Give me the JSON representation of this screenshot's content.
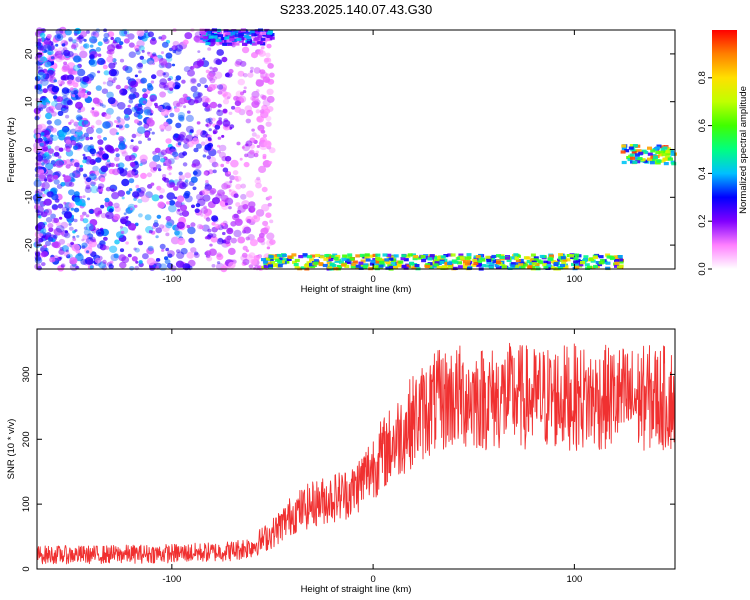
{
  "title": "S233.2025.140.07.43.G30",
  "colors": {
    "snr_line": "#f03030",
    "spectrogram_low": "#d9b3ff",
    "spectrogram_mid": "#5a12e6",
    "spectrogram_high": "#ff1a1a",
    "axes": "#000000"
  },
  "chart_data": [
    {
      "type": "heatmap",
      "title": "",
      "xlabel": "Height of straight line (km)",
      "ylabel": "Frequency (Hz)",
      "xlim": [
        -167,
        150
      ],
      "ylim": [
        -25,
        25
      ],
      "x_ticks": [
        -100,
        0,
        100
      ],
      "y_ticks": [
        20,
        10,
        0,
        -10,
        -20
      ],
      "colorbar": {
        "label": "Normalized spectral amplitude",
        "range": [
          0.0,
          1.0
        ],
        "ticks": [
          "0.0",
          "0.2",
          "0.4",
          "0.6",
          "0.8"
        ],
        "colormap": [
          "#ffffff",
          "#ff80ff",
          "#8000ff",
          "#0000ff",
          "#00c0ff",
          "#00ff80",
          "#40ff00",
          "#c0ff00",
          "#ffe000",
          "#ff8000",
          "#ff0000"
        ]
      },
      "regions": [
        {
          "name": "scattered noise",
          "x_range": [
            -167,
            -55
          ],
          "y_range": [
            -25,
            25
          ],
          "amplitude": 0.15
        },
        {
          "name": "lower band",
          "x_range": [
            -55,
            125
          ],
          "y_range": [
            -25,
            -22
          ],
          "amplitude": 0.85
        },
        {
          "name": "upper band",
          "x_range": [
            -85,
            -50
          ],
          "y_range": [
            22,
            25
          ],
          "amplitude": 0.4
        },
        {
          "name": "side band",
          "x_range": [
            124,
            150
          ],
          "y_range": [
            -3,
            1
          ],
          "amplitude": 0.9
        }
      ]
    },
    {
      "type": "line",
      "title": "",
      "xlabel": "Height of straight line (km)",
      "ylabel": "SNR (10 * v/v)",
      "xlim": [
        -167,
        150
      ],
      "ylim": [
        0,
        370
      ],
      "x_ticks": [
        -100,
        0,
        100
      ],
      "y_ticks": [
        0,
        100,
        200,
        300
      ],
      "series": [
        {
          "x": [
            -167,
            -140,
            -120,
            -100,
            -80,
            -70,
            -60,
            -50,
            -40,
            -30,
            -20,
            -10,
            0,
            10,
            20,
            30,
            40,
            50,
            60,
            70,
            80,
            90,
            100,
            110,
            120,
            130,
            140,
            150
          ],
          "values": [
            22,
            22,
            23,
            24,
            26,
            28,
            35,
            55,
            85,
            100,
            110,
            120,
            160,
            195,
            230,
            255,
            265,
            265,
            262,
            268,
            262,
            265,
            265,
            262,
            265,
            262,
            265,
            262
          ]
        }
      ]
    }
  ]
}
